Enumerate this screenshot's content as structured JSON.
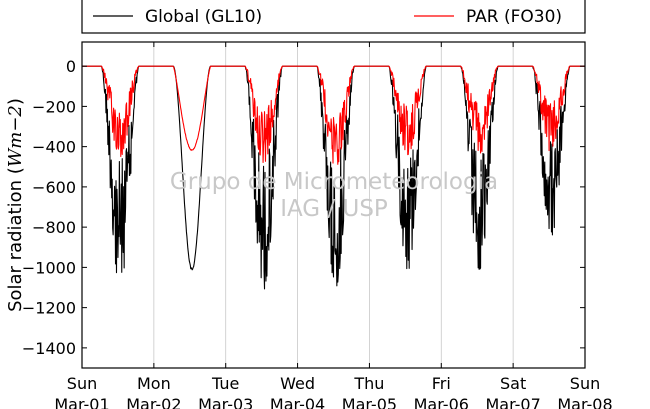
{
  "chart_data": {
    "type": "line",
    "ylabel": "Solar radiation (Wm−2)",
    "ylabel_parts": {
      "prefix": "Solar radiation (",
      "math": "Wm−2",
      "suffix": ")"
    },
    "ylim": [
      -1500,
      120
    ],
    "yticks": [
      0,
      -200,
      -400,
      -600,
      -800,
      -1000,
      -1200,
      -1400
    ],
    "xticks": [
      {
        "day": "Sun",
        "date": "Mar-01"
      },
      {
        "day": "Mon",
        "date": "Mar-02"
      },
      {
        "day": "Tue",
        "date": "Mar-03"
      },
      {
        "day": "Wed",
        "date": "Mar-04"
      },
      {
        "day": "Thu",
        "date": "Mar-05"
      },
      {
        "day": "Fri",
        "date": "Mar-06"
      },
      {
        "day": "Sat",
        "date": "Mar-07"
      },
      {
        "day": "Sun",
        "date": "Mar-08"
      }
    ],
    "xlim_days": [
      0,
      7
    ],
    "grid": "vertical",
    "legend_position": "top",
    "series": [
      {
        "name": "Global (GL10)",
        "color": "#000000",
        "daily_minimum": [
          -1100,
          -1020,
          -1110,
          -1100,
          -1020,
          -1010,
          -845
        ]
      },
      {
        "name": "PAR (FO30)",
        "color": "#ff0000",
        "daily_minimum": [
          -450,
          -420,
          -480,
          -500,
          -440,
          -440,
          -430
        ]
      }
    ]
  },
  "watermark": {
    "line1": "Grupo de Micrometeorologia",
    "line2": "IAG / USP"
  }
}
